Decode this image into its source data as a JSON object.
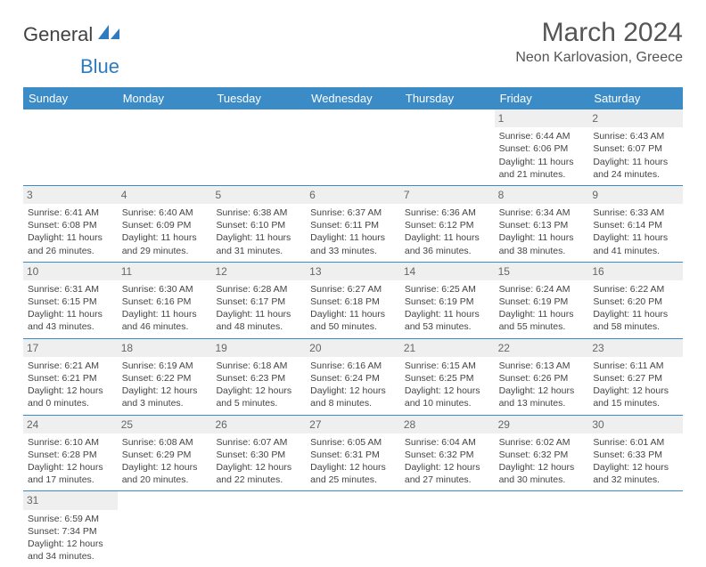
{
  "logo": {
    "text_main": "General",
    "text_sub": "Blue"
  },
  "title": "March 2024",
  "location": "Neon Karlovasion, Greece",
  "colors": {
    "header_bg": "#3b8bc7",
    "header_text": "#ffffff",
    "daynum_bg": "#efefef",
    "text": "#444444",
    "border": "#3b8bc7"
  },
  "day_names": [
    "Sunday",
    "Monday",
    "Tuesday",
    "Wednesday",
    "Thursday",
    "Friday",
    "Saturday"
  ],
  "weeks": [
    [
      null,
      null,
      null,
      null,
      null,
      {
        "n": "1",
        "sr": "Sunrise: 6:44 AM",
        "ss": "Sunset: 6:06 PM",
        "dl1": "Daylight: 11 hours",
        "dl2": "and 21 minutes."
      },
      {
        "n": "2",
        "sr": "Sunrise: 6:43 AM",
        "ss": "Sunset: 6:07 PM",
        "dl1": "Daylight: 11 hours",
        "dl2": "and 24 minutes."
      }
    ],
    [
      {
        "n": "3",
        "sr": "Sunrise: 6:41 AM",
        "ss": "Sunset: 6:08 PM",
        "dl1": "Daylight: 11 hours",
        "dl2": "and 26 minutes."
      },
      {
        "n": "4",
        "sr": "Sunrise: 6:40 AM",
        "ss": "Sunset: 6:09 PM",
        "dl1": "Daylight: 11 hours",
        "dl2": "and 29 minutes."
      },
      {
        "n": "5",
        "sr": "Sunrise: 6:38 AM",
        "ss": "Sunset: 6:10 PM",
        "dl1": "Daylight: 11 hours",
        "dl2": "and 31 minutes."
      },
      {
        "n": "6",
        "sr": "Sunrise: 6:37 AM",
        "ss": "Sunset: 6:11 PM",
        "dl1": "Daylight: 11 hours",
        "dl2": "and 33 minutes."
      },
      {
        "n": "7",
        "sr": "Sunrise: 6:36 AM",
        "ss": "Sunset: 6:12 PM",
        "dl1": "Daylight: 11 hours",
        "dl2": "and 36 minutes."
      },
      {
        "n": "8",
        "sr": "Sunrise: 6:34 AM",
        "ss": "Sunset: 6:13 PM",
        "dl1": "Daylight: 11 hours",
        "dl2": "and 38 minutes."
      },
      {
        "n": "9",
        "sr": "Sunrise: 6:33 AM",
        "ss": "Sunset: 6:14 PM",
        "dl1": "Daylight: 11 hours",
        "dl2": "and 41 minutes."
      }
    ],
    [
      {
        "n": "10",
        "sr": "Sunrise: 6:31 AM",
        "ss": "Sunset: 6:15 PM",
        "dl1": "Daylight: 11 hours",
        "dl2": "and 43 minutes."
      },
      {
        "n": "11",
        "sr": "Sunrise: 6:30 AM",
        "ss": "Sunset: 6:16 PM",
        "dl1": "Daylight: 11 hours",
        "dl2": "and 46 minutes."
      },
      {
        "n": "12",
        "sr": "Sunrise: 6:28 AM",
        "ss": "Sunset: 6:17 PM",
        "dl1": "Daylight: 11 hours",
        "dl2": "and 48 minutes."
      },
      {
        "n": "13",
        "sr": "Sunrise: 6:27 AM",
        "ss": "Sunset: 6:18 PM",
        "dl1": "Daylight: 11 hours",
        "dl2": "and 50 minutes."
      },
      {
        "n": "14",
        "sr": "Sunrise: 6:25 AM",
        "ss": "Sunset: 6:19 PM",
        "dl1": "Daylight: 11 hours",
        "dl2": "and 53 minutes."
      },
      {
        "n": "15",
        "sr": "Sunrise: 6:24 AM",
        "ss": "Sunset: 6:19 PM",
        "dl1": "Daylight: 11 hours",
        "dl2": "and 55 minutes."
      },
      {
        "n": "16",
        "sr": "Sunrise: 6:22 AM",
        "ss": "Sunset: 6:20 PM",
        "dl1": "Daylight: 11 hours",
        "dl2": "and 58 minutes."
      }
    ],
    [
      {
        "n": "17",
        "sr": "Sunrise: 6:21 AM",
        "ss": "Sunset: 6:21 PM",
        "dl1": "Daylight: 12 hours",
        "dl2": "and 0 minutes."
      },
      {
        "n": "18",
        "sr": "Sunrise: 6:19 AM",
        "ss": "Sunset: 6:22 PM",
        "dl1": "Daylight: 12 hours",
        "dl2": "and 3 minutes."
      },
      {
        "n": "19",
        "sr": "Sunrise: 6:18 AM",
        "ss": "Sunset: 6:23 PM",
        "dl1": "Daylight: 12 hours",
        "dl2": "and 5 minutes."
      },
      {
        "n": "20",
        "sr": "Sunrise: 6:16 AM",
        "ss": "Sunset: 6:24 PM",
        "dl1": "Daylight: 12 hours",
        "dl2": "and 8 minutes."
      },
      {
        "n": "21",
        "sr": "Sunrise: 6:15 AM",
        "ss": "Sunset: 6:25 PM",
        "dl1": "Daylight: 12 hours",
        "dl2": "and 10 minutes."
      },
      {
        "n": "22",
        "sr": "Sunrise: 6:13 AM",
        "ss": "Sunset: 6:26 PM",
        "dl1": "Daylight: 12 hours",
        "dl2": "and 13 minutes."
      },
      {
        "n": "23",
        "sr": "Sunrise: 6:11 AM",
        "ss": "Sunset: 6:27 PM",
        "dl1": "Daylight: 12 hours",
        "dl2": "and 15 minutes."
      }
    ],
    [
      {
        "n": "24",
        "sr": "Sunrise: 6:10 AM",
        "ss": "Sunset: 6:28 PM",
        "dl1": "Daylight: 12 hours",
        "dl2": "and 17 minutes."
      },
      {
        "n": "25",
        "sr": "Sunrise: 6:08 AM",
        "ss": "Sunset: 6:29 PM",
        "dl1": "Daylight: 12 hours",
        "dl2": "and 20 minutes."
      },
      {
        "n": "26",
        "sr": "Sunrise: 6:07 AM",
        "ss": "Sunset: 6:30 PM",
        "dl1": "Daylight: 12 hours",
        "dl2": "and 22 minutes."
      },
      {
        "n": "27",
        "sr": "Sunrise: 6:05 AM",
        "ss": "Sunset: 6:31 PM",
        "dl1": "Daylight: 12 hours",
        "dl2": "and 25 minutes."
      },
      {
        "n": "28",
        "sr": "Sunrise: 6:04 AM",
        "ss": "Sunset: 6:32 PM",
        "dl1": "Daylight: 12 hours",
        "dl2": "and 27 minutes."
      },
      {
        "n": "29",
        "sr": "Sunrise: 6:02 AM",
        "ss": "Sunset: 6:32 PM",
        "dl1": "Daylight: 12 hours",
        "dl2": "and 30 minutes."
      },
      {
        "n": "30",
        "sr": "Sunrise: 6:01 AM",
        "ss": "Sunset: 6:33 PM",
        "dl1": "Daylight: 12 hours",
        "dl2": "and 32 minutes."
      }
    ],
    [
      {
        "n": "31",
        "sr": "Sunrise: 6:59 AM",
        "ss": "Sunset: 7:34 PM",
        "dl1": "Daylight: 12 hours",
        "dl2": "and 34 minutes."
      },
      null,
      null,
      null,
      null,
      null,
      null
    ]
  ]
}
